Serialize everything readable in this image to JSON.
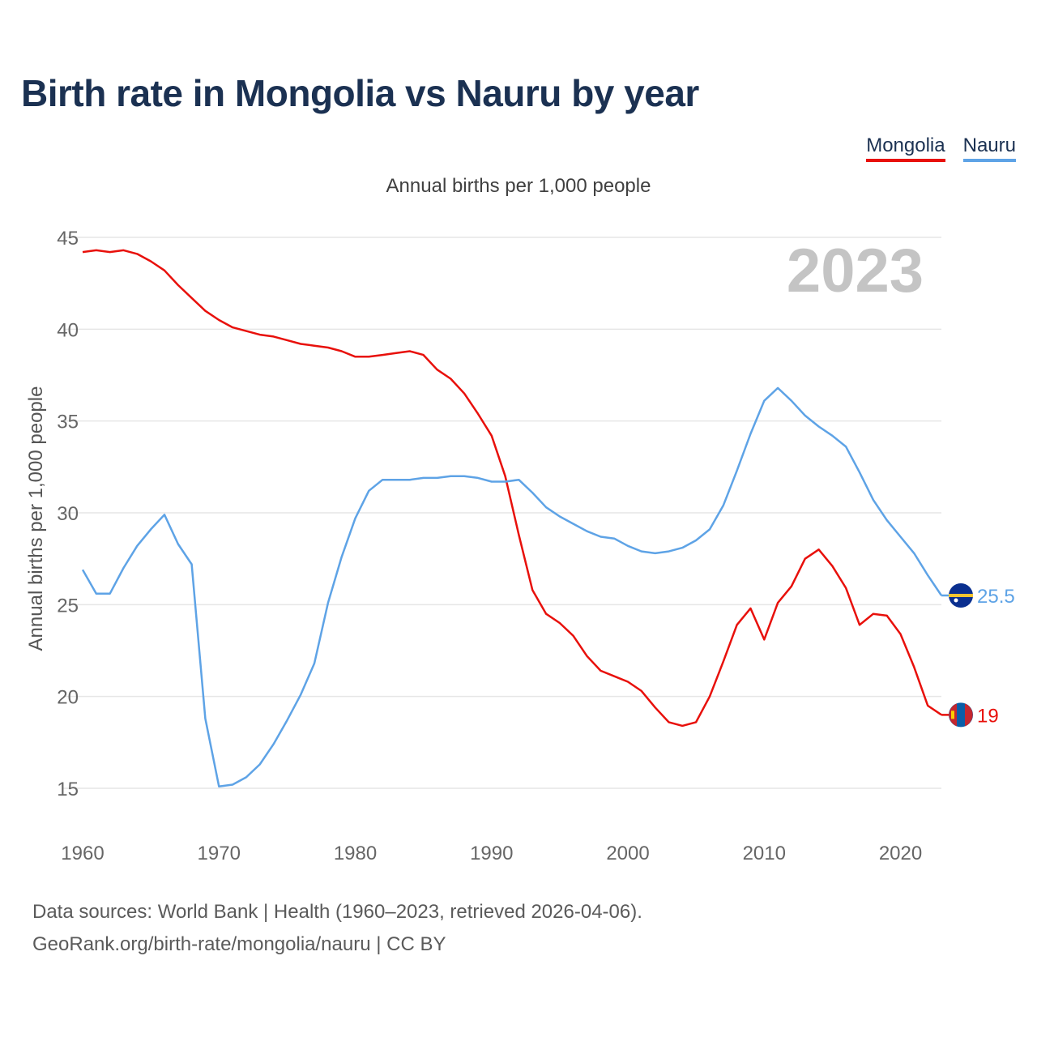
{
  "header": {
    "title": "Birth rate in Mongolia vs Nauru by year",
    "subtitle": "Annual births per 1,000 people"
  },
  "legend": {
    "items": [
      {
        "label": "Mongolia",
        "color": "#e8100b"
      },
      {
        "label": "Nauru",
        "color": "#5ea3e6"
      }
    ]
  },
  "footer": {
    "source_line": "Data sources: World Bank | Health (1960–2023, retrieved 2026-04-06).",
    "url_line": "GeoRank.org/birth-rate/mongolia/nauru | CC BY"
  },
  "chart_data": {
    "type": "line",
    "title": "Birth rate in Mongolia vs Nauru by year",
    "ylabel": "Annual births per 1,000 people",
    "xlabel": "",
    "watermark_year": "2023",
    "xlim": [
      1960,
      2023
    ],
    "ylim": [
      13,
      45
    ],
    "yticks": [
      15,
      20,
      25,
      30,
      35,
      40,
      45
    ],
    "xticks": [
      1960,
      1970,
      1980,
      1990,
      2000,
      2010,
      2020
    ],
    "grid": true,
    "x": [
      1960,
      1961,
      1962,
      1963,
      1964,
      1965,
      1966,
      1967,
      1968,
      1969,
      1970,
      1971,
      1972,
      1973,
      1974,
      1975,
      1976,
      1977,
      1978,
      1979,
      1980,
      1981,
      1982,
      1983,
      1984,
      1985,
      1986,
      1987,
      1988,
      1989,
      1990,
      1991,
      1992,
      1993,
      1994,
      1995,
      1996,
      1997,
      1998,
      1999,
      2000,
      2001,
      2002,
      2003,
      2004,
      2005,
      2006,
      2007,
      2008,
      2009,
      2010,
      2011,
      2012,
      2013,
      2014,
      2015,
      2016,
      2017,
      2018,
      2019,
      2020,
      2021,
      2022,
      2023
    ],
    "series": [
      {
        "name": "Mongolia",
        "color": "#e8100b",
        "end_label": "19",
        "values": [
          44.2,
          44.3,
          44.2,
          44.3,
          44.1,
          43.7,
          43.2,
          42.4,
          41.7,
          41.0,
          40.5,
          40.1,
          39.9,
          39.7,
          39.6,
          39.4,
          39.2,
          39.1,
          39.0,
          38.8,
          38.5,
          38.5,
          38.6,
          38.7,
          38.8,
          38.6,
          37.8,
          37.3,
          36.5,
          35.4,
          34.2,
          32.0,
          28.8,
          25.8,
          24.5,
          24.0,
          23.3,
          22.2,
          21.4,
          21.1,
          20.8,
          20.3,
          19.4,
          18.6,
          18.4,
          18.6,
          20.0,
          21.9,
          23.9,
          24.8,
          23.1,
          25.1,
          26.0,
          27.5,
          28.0,
          27.1,
          25.9,
          23.9,
          24.5,
          24.4,
          23.4,
          21.6,
          19.5,
          19.0
        ]
      },
      {
        "name": "Nauru",
        "color": "#5ea3e6",
        "end_label": "25.5",
        "values": [
          26.9,
          25.6,
          25.6,
          27.0,
          28.2,
          29.1,
          29.9,
          28.3,
          27.2,
          18.8,
          15.1,
          15.2,
          15.6,
          16.3,
          17.4,
          18.7,
          20.1,
          21.8,
          25.1,
          27.6,
          29.7,
          31.2,
          31.8,
          31.8,
          31.8,
          31.9,
          31.9,
          32.0,
          32.0,
          31.9,
          31.7,
          31.7,
          31.8,
          31.1,
          30.3,
          29.8,
          29.4,
          29.0,
          28.7,
          28.6,
          28.2,
          27.9,
          27.8,
          27.9,
          28.1,
          28.5,
          29.1,
          30.4,
          32.3,
          34.3,
          36.1,
          36.8,
          36.1,
          35.3,
          34.7,
          34.2,
          33.6,
          32.2,
          30.7,
          29.6,
          28.7,
          27.8,
          26.6,
          25.5
        ]
      }
    ]
  }
}
